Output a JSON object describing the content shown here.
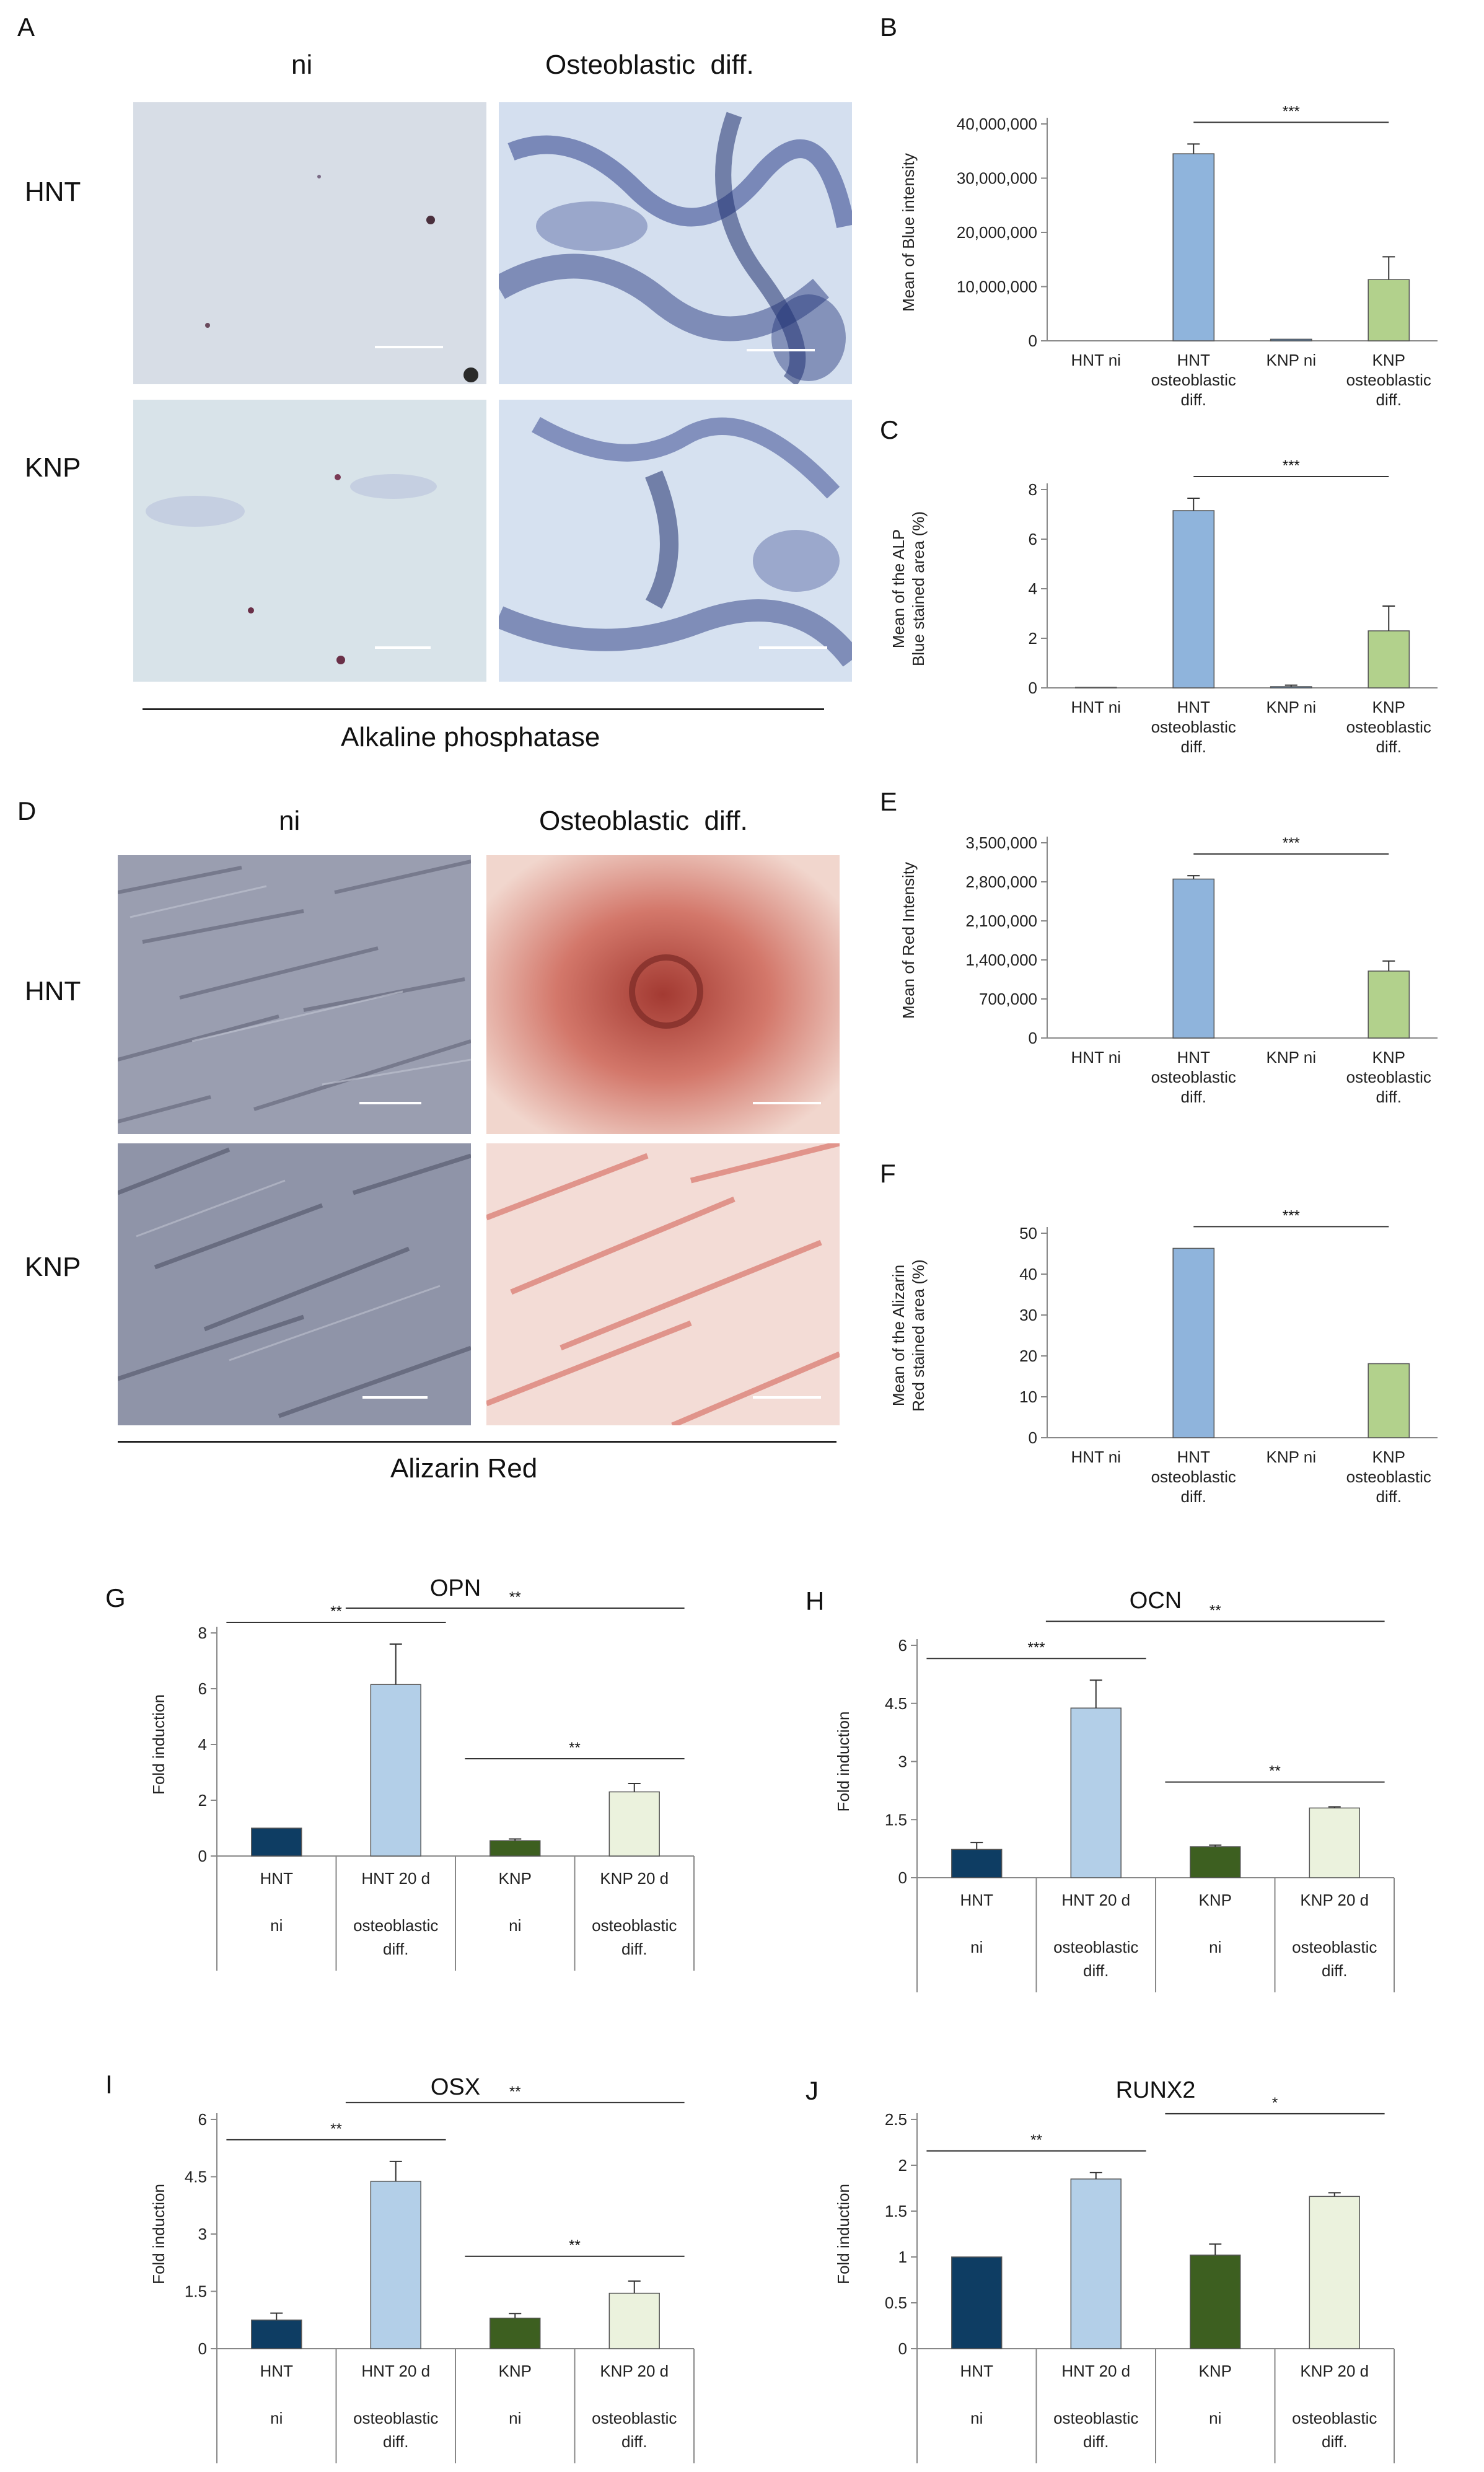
{
  "panels": {
    "A": {
      "letter": "A",
      "col_labels": [
        "ni",
        "Osteoblastic  diff."
      ],
      "row_labels": [
        "HNT",
        "KNP"
      ],
      "caption": "Alkaline phosphatase",
      "stain_color": "#2e3f8a"
    },
    "D": {
      "letter": "D",
      "col_labels": [
        "ni",
        "Osteoblastic  diff."
      ],
      "row_labels": [
        "HNT",
        "KNP"
      ],
      "caption": "Alizarin Red",
      "stain_color": "#c2453c"
    }
  },
  "chart_data": [
    {
      "id": "B",
      "letter": "B",
      "type": "bar",
      "ylabel": "Mean of Blue intensity",
      "title": "",
      "ylim": [
        0,
        40000000
      ],
      "yticks": [
        "0",
        "10,000,000",
        "20,000,000",
        "30,000,000",
        "40,000,000"
      ],
      "categories": [
        [
          "HNT ni"
        ],
        [
          "HNT",
          "osteoblastic",
          "diff."
        ],
        [
          "KNP ni"
        ],
        [
          "KNP",
          "osteoblastic",
          "diff."
        ]
      ],
      "values": [
        0,
        34500000,
        300000,
        11300000
      ],
      "errors": [
        0,
        1800000,
        0,
        4200000
      ],
      "colors": [
        "#5b8fc7",
        "#8fb4dc",
        "#5b8fc7",
        "#b2d18c"
      ],
      "sig": [
        {
          "from": 1,
          "to": 3,
          "label": "***"
        }
      ]
    },
    {
      "id": "C",
      "letter": "C",
      "type": "bar",
      "ylabel": "Mean of the ALP Blue stained area (%)",
      "title": "",
      "ylim": [
        0,
        8
      ],
      "yticks": [
        "0",
        "2",
        "4",
        "6",
        "8"
      ],
      "categories": [
        [
          "HNT ni"
        ],
        [
          "HNT",
          "osteoblastic",
          "diff."
        ],
        [
          "KNP ni"
        ],
        [
          "KNP",
          "osteoblastic",
          "diff."
        ]
      ],
      "values": [
        0.02,
        7.15,
        0.05,
        2.3
      ],
      "errors": [
        0,
        0.5,
        0.06,
        1.0
      ],
      "colors": [
        "#5b8fc7",
        "#8fb4dc",
        "#5b8fc7",
        "#b2d18c"
      ],
      "sig": [
        {
          "from": 1,
          "to": 3,
          "label": "***"
        }
      ]
    },
    {
      "id": "E",
      "letter": "E",
      "type": "bar",
      "ylabel": "Mean of Red Intensity",
      "title": "",
      "ylim": [
        0,
        3500000
      ],
      "yticks": [
        "0",
        "700,000",
        "1,400,000",
        "2,100,000",
        "2,800,000",
        "3,500,000"
      ],
      "categories": [
        [
          "HNT ni"
        ],
        [
          "HNT",
          "osteoblastic",
          "diff."
        ],
        [
          "KNP ni"
        ],
        [
          "KNP",
          "osteoblastic",
          "diff."
        ]
      ],
      "values": [
        0,
        2850000,
        0,
        1200000
      ],
      "errors": [
        0,
        60000,
        0,
        180000
      ],
      "colors": [
        "#5b8fc7",
        "#8fb4dc",
        "#5b8fc7",
        "#b2d18c"
      ],
      "sig": [
        {
          "from": 1,
          "to": 3,
          "label": "***"
        }
      ]
    },
    {
      "id": "F",
      "letter": "F",
      "type": "bar",
      "ylabel": "Mean of the Alizarin Red stained area (%)",
      "title": "",
      "ylim": [
        0,
        50
      ],
      "yticks": [
        "0",
        "10",
        "20",
        "30",
        "40",
        "50"
      ],
      "categories": [
        [
          "HNT ni"
        ],
        [
          "HNT",
          "osteoblastic",
          "diff."
        ],
        [
          "KNP ni"
        ],
        [
          "KNP",
          "osteoblastic",
          "diff."
        ]
      ],
      "values": [
        0,
        46.3,
        0,
        18.1
      ],
      "errors": [
        0,
        0,
        0,
        0
      ],
      "colors": [
        "#5b8fc7",
        "#8fb4dc",
        "#5b8fc7",
        "#b2d18c"
      ],
      "sig": [
        {
          "from": 1,
          "to": 3,
          "label": "***"
        }
      ]
    },
    {
      "id": "G",
      "letter": "G",
      "type": "bar",
      "title": "OPN",
      "ylabel": "Fold induction",
      "ylim": [
        0,
        8
      ],
      "yticks": [
        "0",
        "2",
        "4",
        "6",
        "8"
      ],
      "categories": [
        [
          "HNT",
          "",
          "ni"
        ],
        [
          "HNT  20 d",
          "",
          "osteoblastic",
          "diff."
        ],
        [
          "KNP",
          "",
          "ni"
        ],
        [
          "KNP  20 d",
          "",
          "osteoblastic",
          "diff."
        ]
      ],
      "values": [
        1.0,
        6.15,
        0.55,
        2.3
      ],
      "errors": [
        0,
        1.45,
        0.06,
        0.3
      ],
      "colors": [
        "#0e3d63",
        "#b3cfe8",
        "#3d5f20",
        "#ebf2dd"
      ],
      "sig": [
        {
          "from": 0,
          "to": 1,
          "label": "**"
        },
        {
          "from": 1,
          "to": 3,
          "label": "**"
        },
        {
          "from": 2,
          "to": 3,
          "label": "**"
        }
      ]
    },
    {
      "id": "H",
      "letter": "H",
      "type": "bar",
      "title": "OCN",
      "ylabel": "Fold induction",
      "ylim": [
        0,
        6
      ],
      "yticks": [
        "0",
        "1.5",
        "3",
        "4.5",
        "6"
      ],
      "categories": [
        [
          "HNT",
          "",
          "ni"
        ],
        [
          "HNT  20 d",
          "",
          "osteoblastic",
          "diff."
        ],
        [
          "KNP",
          "",
          "ni"
        ],
        [
          "KNP  20 d",
          "",
          "osteoblastic",
          "diff."
        ]
      ],
      "values": [
        0.73,
        4.38,
        0.8,
        1.8
      ],
      "errors": [
        0.18,
        0.72,
        0.04,
        0.03
      ],
      "colors": [
        "#0e3d63",
        "#b3cfe8",
        "#3d5f20",
        "#ebf2dd"
      ],
      "sig": [
        {
          "from": 0,
          "to": 1,
          "label": "***"
        },
        {
          "from": 1,
          "to": 3,
          "label": "**"
        },
        {
          "from": 2,
          "to": 3,
          "label": "**"
        }
      ]
    },
    {
      "id": "I",
      "letter": "I",
      "type": "bar",
      "title": "OSX",
      "ylabel": "Fold induction",
      "ylim": [
        0,
        6
      ],
      "yticks": [
        "0",
        "1.5",
        "3",
        "4.5",
        "6"
      ],
      "categories": [
        [
          "HNT",
          "",
          "ni"
        ],
        [
          "HNT  20 d",
          "",
          "osteoblastic",
          "diff."
        ],
        [
          "KNP",
          "",
          "ni"
        ],
        [
          "KNP  20 d",
          "",
          "osteoblastic",
          "diff."
        ]
      ],
      "values": [
        0.75,
        4.38,
        0.8,
        1.45
      ],
      "errors": [
        0.18,
        0.52,
        0.12,
        0.32
      ],
      "colors": [
        "#0e3d63",
        "#b3cfe8",
        "#3d5f20",
        "#ebf2dd"
      ],
      "sig": [
        {
          "from": 0,
          "to": 1,
          "label": "**"
        },
        {
          "from": 1,
          "to": 3,
          "label": "**"
        },
        {
          "from": 2,
          "to": 3,
          "label": "**"
        }
      ]
    },
    {
      "id": "J",
      "letter": "J",
      "type": "bar",
      "title": "RUNX2",
      "ylabel": "Fold induction",
      "ylim": [
        0,
        2.5
      ],
      "yticks": [
        "0",
        "0.5",
        "1",
        "1.5",
        "2",
        "2.5"
      ],
      "categories": [
        [
          "HNT",
          "",
          "ni"
        ],
        [
          "HNT  20 d",
          "",
          "osteoblastic",
          "diff."
        ],
        [
          "KNP",
          "",
          "ni"
        ],
        [
          "KNP  20 d",
          "",
          "osteoblastic",
          "diff."
        ]
      ],
      "values": [
        1.0,
        1.85,
        1.02,
        1.66
      ],
      "errors": [
        0,
        0.07,
        0.12,
        0.04
      ],
      "colors": [
        "#0e3d63",
        "#b3cfe8",
        "#3d5f20",
        "#ebf2dd"
      ],
      "sig": [
        {
          "from": 0,
          "to": 1,
          "label": "**"
        },
        {
          "from": 2,
          "to": 3,
          "label": "*"
        }
      ]
    }
  ]
}
